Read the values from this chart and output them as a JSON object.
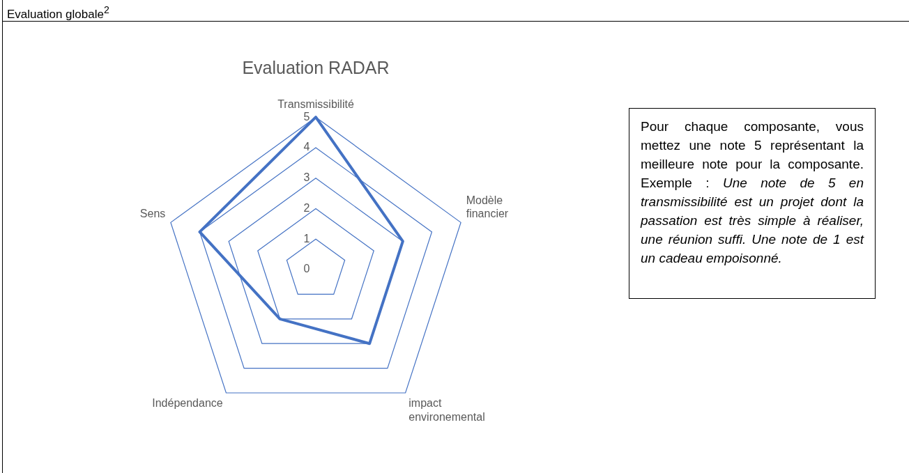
{
  "chart_data": {
    "type": "radar",
    "title": "Evaluation RADAR",
    "categories": [
      "Transmissibilité",
      "Modèle financier",
      "impact environemental",
      "Indépendance",
      "Sens"
    ],
    "series": [
      {
        "color": "#4472c4",
        "values": [
          5,
          3,
          3,
          2,
          4
        ]
      }
    ],
    "ylim": [
      0,
      5
    ],
    "yticks": [
      0,
      1,
      2,
      3,
      4,
      5
    ],
    "grid": true,
    "legend": false,
    "marker": "none",
    "line_style": "solid",
    "annotations": [
      "Evaluation globale$^{2}$",
      "Pour chaque composante, vous mettez une note 5 représentant la meilleure note pour la composante. Exemple :",
      "Une note de 5 en transmissibilité est un projet dont la passation est très simple à réaliser, une réunion suffi. Une note de 1 est un cadeau empoisonné."
    ]
  }
}
